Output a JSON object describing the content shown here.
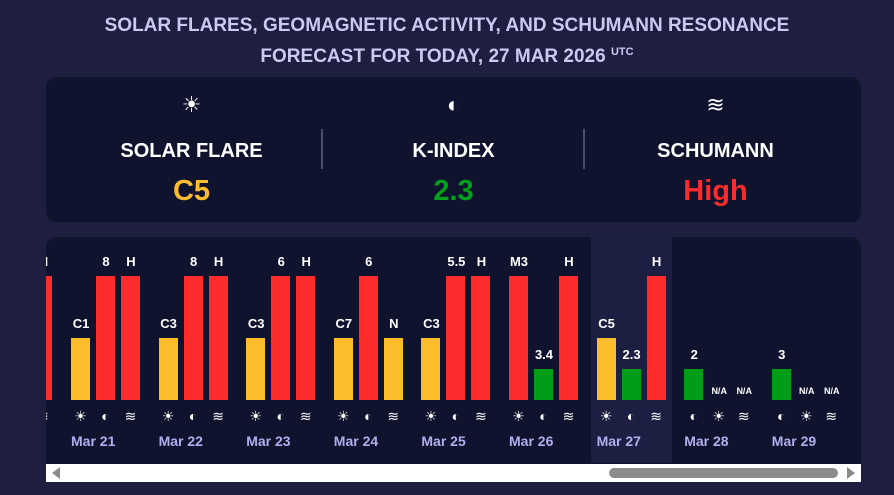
{
  "title": {
    "line1": "SOLAR FLARES, GEOMAGNETIC ACTIVITY, AND SCHUMANN RESONANCE",
    "line2": "FORECAST FOR TODAY, 27 MAR 2026",
    "tz": "UTC"
  },
  "summary": [
    {
      "icon": "☀",
      "label": "SOLAR FLARE",
      "value": "C5",
      "color": "#fbbd2c"
    },
    {
      "icon": "◐",
      "label": "K-INDEX",
      "value": "2.3",
      "color": "#00a01a"
    },
    {
      "icon": "≋",
      "label": "SCHUMANN",
      "value": "High",
      "color": "#fd2b2b"
    }
  ],
  "colors": {
    "red": "#fd2b2b",
    "yellow": "#fbbd2c",
    "green": "#009e18"
  },
  "chart_data": {
    "type": "bar",
    "level_fraction": {
      "red": 1.0,
      "yellow": 0.5,
      "green": 0.25
    },
    "today": "Mar 27",
    "days": [
      {
        "date": null,
        "order": [
          "flare",
          "k",
          "schumann"
        ],
        "flare": null,
        "k": null,
        "schumann": {
          "label": "H",
          "level": "red"
        }
      },
      {
        "date": "Mar 21",
        "order": [
          "flare",
          "k",
          "schumann"
        ],
        "flare": {
          "label": "C1",
          "level": "yellow"
        },
        "k": {
          "label": "8",
          "level": "red"
        },
        "schumann": {
          "label": "H",
          "level": "red"
        }
      },
      {
        "date": "Mar 22",
        "order": [
          "flare",
          "k",
          "schumann"
        ],
        "flare": {
          "label": "C3",
          "level": "yellow"
        },
        "k": {
          "label": "8",
          "level": "red"
        },
        "schumann": {
          "label": "H",
          "level": "red"
        }
      },
      {
        "date": "Mar 23",
        "order": [
          "flare",
          "k",
          "schumann"
        ],
        "flare": {
          "label": "C3",
          "level": "yellow"
        },
        "k": {
          "label": "6",
          "level": "red"
        },
        "schumann": {
          "label": "H",
          "level": "red"
        }
      },
      {
        "date": "Mar 24",
        "order": [
          "flare",
          "k",
          "schumann"
        ],
        "flare": {
          "label": "C7",
          "level": "yellow"
        },
        "k": {
          "label": "6",
          "level": "red"
        },
        "schumann": {
          "label": "N",
          "level": "yellow"
        }
      },
      {
        "date": "Mar 25",
        "order": [
          "flare",
          "k",
          "schumann"
        ],
        "flare": {
          "label": "C3",
          "level": "yellow"
        },
        "k": {
          "label": "5.5",
          "level": "red"
        },
        "schumann": {
          "label": "H",
          "level": "red"
        }
      },
      {
        "date": "Mar 26",
        "order": [
          "flare",
          "k",
          "schumann"
        ],
        "flare": {
          "label": "M3",
          "level": "red"
        },
        "k": {
          "label": "3.4",
          "level": "green"
        },
        "schumann": {
          "label": "H",
          "level": "red"
        }
      },
      {
        "date": "Mar 27",
        "order": [
          "flare",
          "k",
          "schumann"
        ],
        "flare": {
          "label": "C5",
          "level": "yellow"
        },
        "k": {
          "label": "2.3",
          "level": "green"
        },
        "schumann": {
          "label": "H",
          "level": "red"
        }
      },
      {
        "date": "Mar 28",
        "order": [
          "k",
          "flare",
          "schumann"
        ],
        "k": {
          "label": "2",
          "level": "green"
        },
        "flare": {
          "label": "N/A",
          "level": null
        },
        "schumann": {
          "label": "N/A",
          "level": null
        }
      },
      {
        "date": "Mar 29",
        "order": [
          "k",
          "flare",
          "schumann"
        ],
        "k": {
          "label": "3",
          "level": "green"
        },
        "flare": {
          "label": "N/A",
          "level": null
        },
        "schumann": {
          "label": "N/A",
          "level": null
        }
      }
    ]
  }
}
